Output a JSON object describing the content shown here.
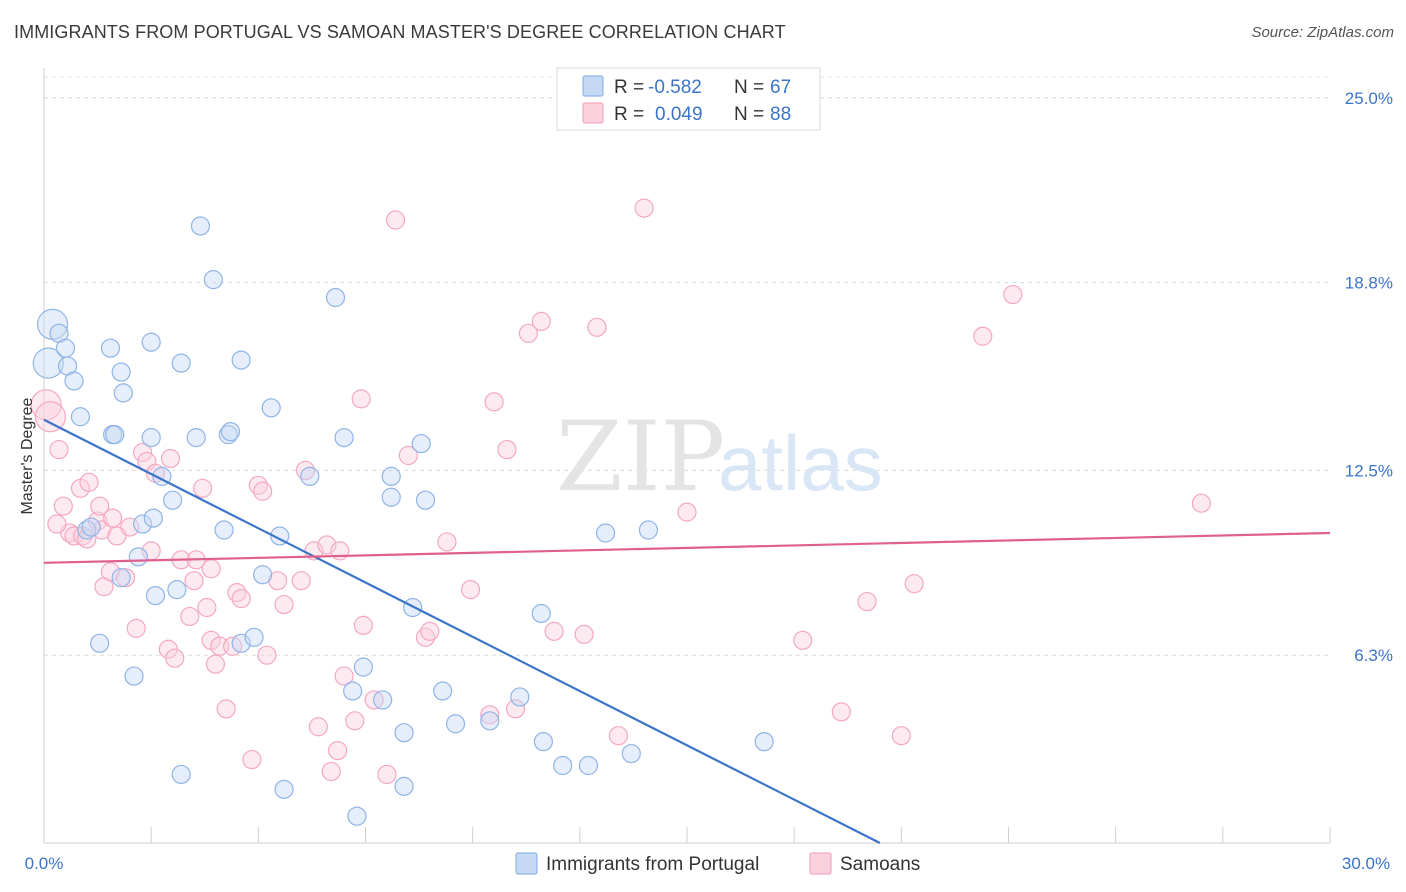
{
  "title": "IMMIGRANTS FROM PORTUGAL VS SAMOAN MASTER'S DEGREE CORRELATION CHART",
  "source": "Source: ZipAtlas.com",
  "watermark": {
    "zip": "ZIP",
    "atlas": "atlas"
  },
  "chart_data": {
    "type": "scatter",
    "ylabel": "Master's Degree",
    "xlim": [
      0,
      30
    ],
    "ylim": [
      0,
      26
    ],
    "x_tick_labels": [
      "0.0%",
      "30.0%"
    ],
    "y_ticks": [
      {
        "value": 6.3,
        "label": "6.3%"
      },
      {
        "value": 12.5,
        "label": "12.5%"
      },
      {
        "value": 18.8,
        "label": "18.8%"
      },
      {
        "value": 25.0,
        "label": "25.0%"
      }
    ],
    "legend": {
      "placement": "top-center",
      "rows": [
        {
          "r_label": "R =",
          "r_value": "-0.582",
          "n_label": "N =",
          "n_value": "67"
        },
        {
          "r_label": "R =",
          "r_value": "0.049",
          "n_label": "N =",
          "n_value": "88"
        }
      ]
    },
    "series": [
      {
        "name": "Immigrants from Portugal",
        "color": "#8fb4e8",
        "line_color": "#3b74c8",
        "trend": {
          "x": [
            0,
            19.5
          ],
          "y": [
            14.2,
            0
          ]
        },
        "points": [
          [
            0.1,
            16.1
          ],
          [
            0.2,
            17.4
          ],
          [
            0.35,
            17.1
          ],
          [
            0.5,
            16.6
          ],
          [
            0.55,
            16.0
          ],
          [
            0.7,
            15.5
          ],
          [
            0.85,
            14.3
          ],
          [
            1.55,
            16.6
          ],
          [
            1.6,
            13.7
          ],
          [
            1.65,
            13.7
          ],
          [
            1.8,
            15.8
          ],
          [
            1.85,
            15.1
          ],
          [
            2.5,
            16.8
          ],
          [
            2.5,
            13.6
          ],
          [
            3.2,
            16.1
          ],
          [
            3.55,
            13.6
          ],
          [
            3.65,
            20.7
          ],
          [
            3.95,
            18.9
          ],
          [
            4.3,
            13.7
          ],
          [
            4.35,
            13.8
          ],
          [
            4.6,
            16.2
          ],
          [
            4.2,
            10.5
          ],
          [
            5.3,
            14.6
          ],
          [
            6.2,
            12.3
          ],
          [
            6.8,
            18.3
          ],
          [
            7.0,
            13.6
          ],
          [
            8.1,
            12.3
          ],
          [
            8.1,
            11.6
          ],
          [
            8.8,
            13.4
          ],
          [
            8.9,
            11.5
          ],
          [
            1.0,
            10.5
          ],
          [
            1.1,
            10.6
          ],
          [
            2.2,
            9.6
          ],
          [
            2.3,
            10.7
          ],
          [
            2.55,
            10.9
          ],
          [
            2.75,
            12.3
          ],
          [
            3.0,
            11.5
          ],
          [
            5.1,
            9.0
          ],
          [
            5.5,
            10.3
          ],
          [
            1.8,
            8.9
          ],
          [
            2.6,
            8.3
          ],
          [
            3.1,
            8.5
          ],
          [
            1.3,
            6.7
          ],
          [
            2.1,
            5.6
          ],
          [
            4.6,
            6.7
          ],
          [
            4.9,
            6.9
          ],
          [
            7.2,
            5.1
          ],
          [
            7.45,
            5.9
          ],
          [
            7.9,
            4.8
          ],
          [
            8.4,
            3.7
          ],
          [
            8.6,
            7.9
          ],
          [
            9.3,
            5.1
          ],
          [
            9.6,
            4.0
          ],
          [
            10.4,
            4.1
          ],
          [
            11.1,
            4.9
          ],
          [
            11.6,
            7.7
          ],
          [
            11.65,
            3.4
          ],
          [
            12.1,
            2.6
          ],
          [
            12.7,
            2.6
          ],
          [
            13.1,
            10.4
          ],
          [
            13.7,
            3.0
          ],
          [
            14.1,
            10.5
          ],
          [
            16.8,
            3.4
          ],
          [
            3.2,
            2.3
          ],
          [
            5.6,
            1.8
          ],
          [
            8.4,
            1.9
          ],
          [
            7.3,
            0.9
          ]
        ]
      },
      {
        "name": "Samoans",
        "color": "#f4a8c0",
        "line_color": "#e0608c",
        "trend": {
          "x": [
            0,
            30
          ],
          "y": [
            9.4,
            10.4
          ]
        },
        "points": [
          [
            0.05,
            14.7
          ],
          [
            0.15,
            14.3
          ],
          [
            0.35,
            13.2
          ],
          [
            0.45,
            11.3
          ],
          [
            0.6,
            10.4
          ],
          [
            0.7,
            10.3
          ],
          [
            0.85,
            11.9
          ],
          [
            0.9,
            10.3
          ],
          [
            1.0,
            10.2
          ],
          [
            1.05,
            12.1
          ],
          [
            1.25,
            10.8
          ],
          [
            1.3,
            11.3
          ],
          [
            1.35,
            10.5
          ],
          [
            1.6,
            10.9
          ],
          [
            1.4,
            8.6
          ],
          [
            1.55,
            9.1
          ],
          [
            1.9,
            8.9
          ],
          [
            2.0,
            10.6
          ],
          [
            2.15,
            7.2
          ],
          [
            2.3,
            13.1
          ],
          [
            2.4,
            12.8
          ],
          [
            2.5,
            9.8
          ],
          [
            2.6,
            12.4
          ],
          [
            2.9,
            6.5
          ],
          [
            2.95,
            12.9
          ],
          [
            3.05,
            6.2
          ],
          [
            3.2,
            9.5
          ],
          [
            3.4,
            7.6
          ],
          [
            3.5,
            8.8
          ],
          [
            3.55,
            9.5
          ],
          [
            3.7,
            11.9
          ],
          [
            3.8,
            7.9
          ],
          [
            3.9,
            6.8
          ],
          [
            4.0,
            6.0
          ],
          [
            4.1,
            6.6
          ],
          [
            4.25,
            4.5
          ],
          [
            4.4,
            6.6
          ],
          [
            4.5,
            8.4
          ],
          [
            4.6,
            8.2
          ],
          [
            4.85,
            2.8
          ],
          [
            5.0,
            12.0
          ],
          [
            5.1,
            11.8
          ],
          [
            5.2,
            6.3
          ],
          [
            5.45,
            8.8
          ],
          [
            5.6,
            8.0
          ],
          [
            6.0,
            8.8
          ],
          [
            6.1,
            12.5
          ],
          [
            6.3,
            9.8
          ],
          [
            6.4,
            3.9
          ],
          [
            6.6,
            10.0
          ],
          [
            6.7,
            2.4
          ],
          [
            6.85,
            3.1
          ],
          [
            7.0,
            5.6
          ],
          [
            7.25,
            4.1
          ],
          [
            7.45,
            7.3
          ],
          [
            7.4,
            14.9
          ],
          [
            7.7,
            4.8
          ],
          [
            8.0,
            2.3
          ],
          [
            8.2,
            20.9
          ],
          [
            8.5,
            13.0
          ],
          [
            8.9,
            6.9
          ],
          [
            9.0,
            7.1
          ],
          [
            9.4,
            10.1
          ],
          [
            9.95,
            8.5
          ],
          [
            10.4,
            4.3
          ],
          [
            10.5,
            14.8
          ],
          [
            10.8,
            13.2
          ],
          [
            11.0,
            4.5
          ],
          [
            11.3,
            17.1
          ],
          [
            11.6,
            17.5
          ],
          [
            11.9,
            7.1
          ],
          [
            12.6,
            7.0
          ],
          [
            12.9,
            17.3
          ],
          [
            13.4,
            3.6
          ],
          [
            14.0,
            21.3
          ],
          [
            15.0,
            11.1
          ],
          [
            17.7,
            6.8
          ],
          [
            18.6,
            4.4
          ],
          [
            19.2,
            8.1
          ],
          [
            20.0,
            3.6
          ],
          [
            20.3,
            8.7
          ],
          [
            21.9,
            17.0
          ],
          [
            22.6,
            18.4
          ],
          [
            27.0,
            11.4
          ],
          [
            1.7,
            10.3
          ],
          [
            3.9,
            9.2
          ],
          [
            0.3,
            10.7
          ],
          [
            6.9,
            9.8
          ]
        ]
      }
    ]
  }
}
